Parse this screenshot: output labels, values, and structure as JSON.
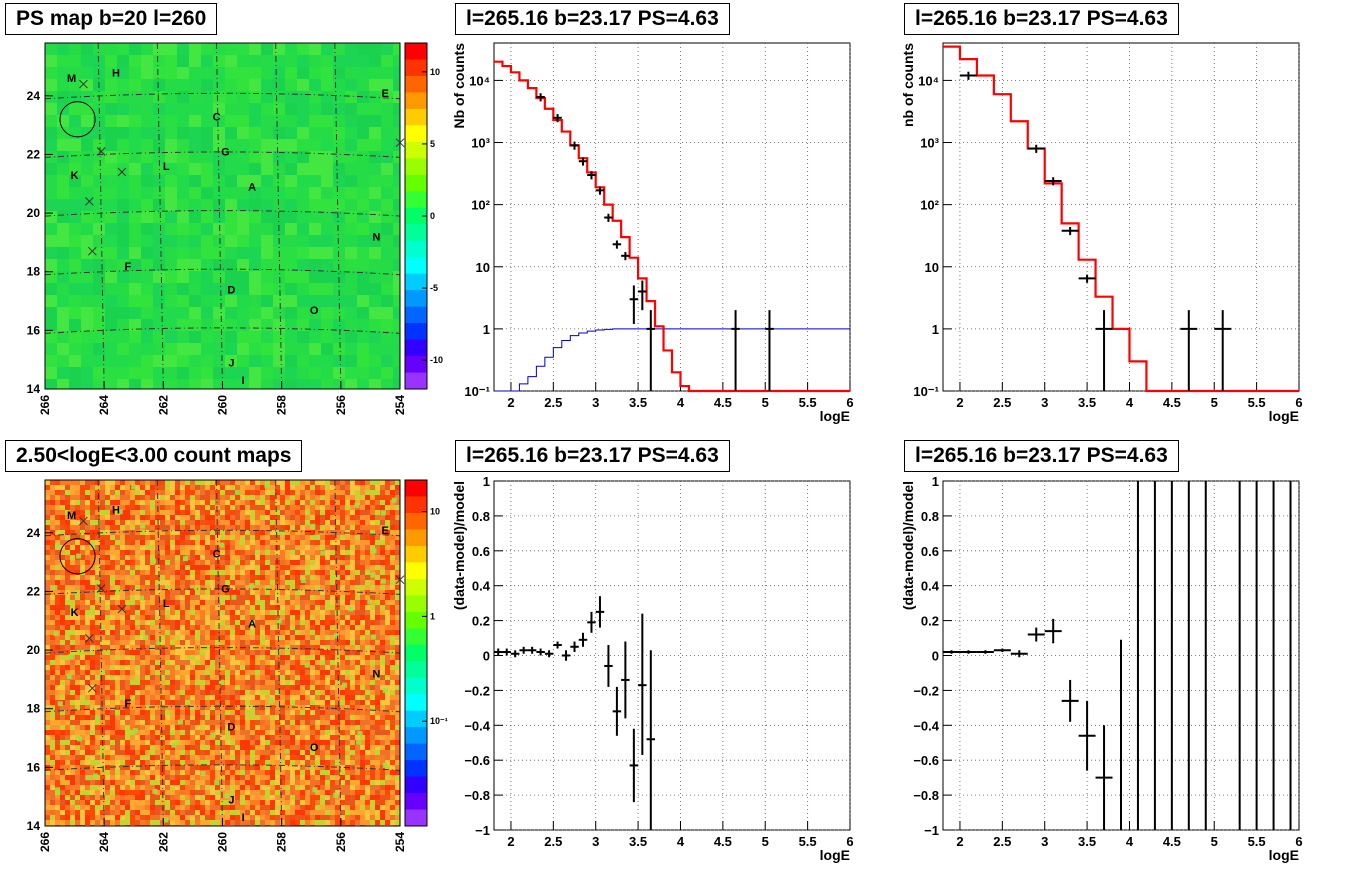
{
  "map_labels": [
    {
      "id": "M",
      "l": 265.1,
      "b": 24.6
    },
    {
      "id": "H",
      "l": 263.6,
      "b": 24.8
    },
    {
      "id": "E",
      "l": 254.5,
      "b": 24.1
    },
    {
      "id": "C",
      "l": 260.2,
      "b": 23.3
    },
    {
      "id": "G",
      "l": 259.9,
      "b": 22.1
    },
    {
      "id": "K",
      "l": 265.0,
      "b": 21.3
    },
    {
      "id": "L",
      "l": 261.9,
      "b": 21.6
    },
    {
      "id": "A",
      "l": 259.0,
      "b": 20.9
    },
    {
      "id": "N",
      "l": 254.8,
      "b": 19.2
    },
    {
      "id": "F",
      "l": 263.2,
      "b": 18.2
    },
    {
      "id": "D",
      "l": 259.7,
      "b": 17.4
    },
    {
      "id": "O",
      "l": 256.9,
      "b": 16.7
    },
    {
      "id": "J",
      "l": 259.7,
      "b": 14.9
    },
    {
      "id": "I",
      "l": 259.3,
      "b": 14.3
    }
  ],
  "map_markers": [
    {
      "l": 264.7,
      "b": 24.4
    },
    {
      "l": 264.1,
      "b": 22.1
    },
    {
      "l": 263.4,
      "b": 21.4
    },
    {
      "l": 264.5,
      "b": 20.4
    },
    {
      "l": 264.4,
      "b": 18.7
    },
    {
      "l": 254.0,
      "b": 22.4
    }
  ],
  "map_circle": {
    "l": 264.9,
    "b": 23.2,
    "r": 0.6
  },
  "panels": [
    {
      "key": "ps_map",
      "kind": "map",
      "title": "PS map b=20 l=260",
      "x_ticks": [
        "266",
        "264",
        "262",
        "260",
        "258",
        "256",
        "254"
      ],
      "y_ticks": [
        "14",
        "16",
        "18",
        "20",
        "22",
        "24"
      ],
      "colorbar_ticks": [
        {
          "v": 10,
          "t": "10"
        },
        {
          "v": 5,
          "t": "5"
        },
        {
          "v": 0,
          "t": "0"
        },
        {
          "v": -5,
          "t": "-5"
        },
        {
          "v": -10,
          "t": "-10"
        }
      ],
      "colorbar_colors": [
        "#ff0000",
        "#ff3300",
        "#ff6600",
        "#ff9900",
        "#ffcc00",
        "#ffff00",
        "#ccff00",
        "#99ff00",
        "#66ff00",
        "#33ff33",
        "#00ff66",
        "#00ff99",
        "#00ffcc",
        "#00ffff",
        "#00ccff",
        "#0099ff",
        "#0066ff",
        "#0033ff",
        "#3300ff",
        "#6600ff",
        "#9933ff"
      ],
      "map_fill": "#22dd44"
    },
    {
      "key": "counts_fine",
      "kind": "log",
      "title": "l=265.16 b=23.17 PS=4.63",
      "xlabel": "logE",
      "ylabel": "Nb of counts"
    },
    {
      "key": "counts_coarse",
      "kind": "log",
      "title": "l=265.16 b=23.17 PS=4.63",
      "xlabel": "logE",
      "ylabel": "nb of counts"
    },
    {
      "key": "count_map",
      "kind": "map",
      "title": "2.50<logE<3.00 count maps",
      "x_ticks": [
        "266",
        "264",
        "262",
        "260",
        "258",
        "256",
        "254"
      ],
      "y_ticks": [
        "14",
        "16",
        "18",
        "20",
        "22",
        "24"
      ],
      "colorbar_ticks": [
        {
          "v": 10,
          "t": "10"
        },
        {
          "v": 1,
          "t": "1"
        },
        {
          "v": 0.1,
          "t": "10⁻¹"
        }
      ],
      "colorbar_colors": [
        "#ff0000",
        "#ff3300",
        "#ff6600",
        "#ff9900",
        "#ffcc00",
        "#ffff00",
        "#ccff00",
        "#99ff00",
        "#66ff00",
        "#33ff33",
        "#00ff66",
        "#00ff99",
        "#00ffcc",
        "#00ffff",
        "#00ccff",
        "#0099ff",
        "#0066ff",
        "#0033ff",
        "#3300ff",
        "#6600ff",
        "#9933ff"
      ],
      "map_fill": "#f08030"
    },
    {
      "key": "resid_fine",
      "kind": "lin",
      "title": "l=265.16 b=23.17 PS=4.63",
      "xlabel": "logE",
      "ylabel": "(data-model)/model"
    },
    {
      "key": "resid_coarse",
      "kind": "lin",
      "title": "l=265.16 b=23.17 PS=4.63",
      "xlabel": "logE",
      "ylabel": "(data-model)/model"
    }
  ],
  "chart_data": [
    {
      "type": "heatmap",
      "title": "PS map b=20 l=260",
      "xlim": [
        266,
        254
      ],
      "ylim": [
        14,
        25.8
      ],
      "zlim": [
        -12,
        12
      ],
      "colors": {
        "fill": "#22dd44"
      }
    },
    {
      "type": "line",
      "title": "l=265.16 b=23.17 PS=4.63",
      "xlabel": "logE",
      "ylabel": "Nb of counts",
      "xlim": [
        1.8,
        6
      ],
      "ylim": [
        0.1,
        40000
      ],
      "yscale": "log",
      "grid": true,
      "x_ticks": [
        2,
        2.5,
        3,
        3.5,
        4,
        4.5,
        5,
        5.5,
        6
      ],
      "y_ticks": [
        {
          "v": 0.1,
          "t": "10⁻¹"
        },
        {
          "v": 1,
          "t": "1"
        },
        {
          "v": 10,
          "t": "10"
        },
        {
          "v": 100,
          "t": "10²"
        },
        {
          "v": 1000,
          "t": "10³"
        },
        {
          "v": 10000,
          "t": "10⁴"
        }
      ],
      "model_red": {
        "edges": [
          1.8,
          1.9,
          2.0,
          2.1,
          2.2,
          2.3,
          2.4,
          2.5,
          2.6,
          2.7,
          2.8,
          2.9,
          3.0,
          3.1,
          3.2,
          3.3,
          3.4,
          3.5,
          3.6,
          3.7,
          3.8,
          3.9,
          4.0,
          4.1,
          4.2,
          6.0
        ],
        "values": [
          20000,
          17000,
          13500,
          10000,
          7500,
          5200,
          3500,
          2300,
          1500,
          900,
          560,
          330,
          190,
          100,
          55,
          30,
          14,
          6.5,
          2.8,
          1.1,
          0.45,
          0.2,
          0.12,
          0.1,
          0.08
        ]
      },
      "model_blue": {
        "edges": [
          1.8,
          1.9,
          2.0,
          2.1,
          2.2,
          2.3,
          2.4,
          2.5,
          2.6,
          2.7,
          2.8,
          2.9,
          3.0,
          3.1,
          3.2,
          3.3,
          3.4,
          3.5,
          3.6,
          6.0
        ],
        "values": [
          0.05,
          0.08,
          0.1,
          0.13,
          0.17,
          0.25,
          0.35,
          0.5,
          0.65,
          0.78,
          0.86,
          0.92,
          0.96,
          0.98,
          1.0,
          1.0,
          1.0,
          1.0,
          1.0
        ]
      },
      "data_points": [
        {
          "x": 2.35,
          "y": 5400,
          "dx": 0.05
        },
        {
          "x": 2.55,
          "y": 2500,
          "dx": 0.05
        },
        {
          "x": 2.75,
          "y": 900,
          "dx": 0.05
        },
        {
          "x": 2.85,
          "y": 500,
          "dx": 0.05
        },
        {
          "x": 2.95,
          "y": 300,
          "dx": 0.05
        },
        {
          "x": 3.05,
          "y": 170,
          "dx": 0.05
        },
        {
          "x": 3.15,
          "y": 62,
          "dx": 0.05
        },
        {
          "x": 3.25,
          "y": 23,
          "dx": 0.05
        },
        {
          "x": 3.35,
          "y": 15,
          "dx": 0.05
        },
        {
          "x": 3.45,
          "y": 3,
          "dx": 0.05,
          "ylo": 1.2,
          "yhi": 5
        },
        {
          "x": 3.55,
          "y": 4,
          "dx": 0.05,
          "ylo": 2,
          "yhi": 6
        },
        {
          "x": 3.65,
          "y": 1,
          "dx": 0.05,
          "ylo": 0.1,
          "yhi": 2
        },
        {
          "x": 4.65,
          "y": 1,
          "dx": 0.05,
          "ylo": 0.1,
          "yhi": 2
        },
        {
          "x": 5.05,
          "y": 1,
          "dx": 0.05,
          "ylo": 0.1,
          "yhi": 2
        }
      ],
      "colors": {
        "model": "#ff0000",
        "background": "#0000cc",
        "data": "#000000"
      }
    },
    {
      "type": "line",
      "title": "l=265.16 b=23.17 PS=4.63",
      "xlabel": "logE",
      "ylabel": "nb of counts",
      "xlim": [
        1.8,
        6
      ],
      "ylim": [
        0.1,
        40000
      ],
      "yscale": "log",
      "grid": true,
      "x_ticks": [
        2,
        2.5,
        3,
        3.5,
        4,
        4.5,
        5,
        5.5,
        6
      ],
      "y_ticks": [
        {
          "v": 0.1,
          "t": "10⁻¹"
        },
        {
          "v": 1,
          "t": "1"
        },
        {
          "v": 10,
          "t": "10"
        },
        {
          "v": 100,
          "t": "10²"
        },
        {
          "v": 1000,
          "t": "10³"
        },
        {
          "v": 10000,
          "t": "10⁴"
        }
      ],
      "model_red": {
        "edges": [
          1.8,
          2.0,
          2.2,
          2.4,
          2.6,
          2.8,
          3.0,
          3.2,
          3.4,
          3.6,
          3.8,
          4.0,
          4.2,
          6.0
        ],
        "values": [
          35000,
          22000,
          12000,
          6000,
          2200,
          800,
          220,
          50,
          13,
          3.3,
          1,
          0.3,
          0.1
        ]
      },
      "model_blue": {
        "edges": [],
        "values": []
      },
      "data_points": [
        {
          "x": 2.1,
          "y": 12000,
          "dx": 0.1
        },
        {
          "x": 2.9,
          "y": 800,
          "dx": 0.1
        },
        {
          "x": 3.1,
          "y": 240,
          "dx": 0.1
        },
        {
          "x": 3.3,
          "y": 38,
          "dx": 0.1
        },
        {
          "x": 3.5,
          "y": 6.5,
          "dx": 0.1
        },
        {
          "x": 3.7,
          "y": 1,
          "dx": 0.1,
          "ylo": 0.1,
          "yhi": 2
        },
        {
          "x": 4.7,
          "y": 1,
          "dx": 0.1,
          "ylo": 0.1,
          "yhi": 2
        },
        {
          "x": 5.1,
          "y": 1,
          "dx": 0.1,
          "ylo": 0.1,
          "yhi": 2
        }
      ],
      "colors": {
        "model": "#ff0000",
        "data": "#000000"
      }
    },
    {
      "type": "heatmap",
      "title": "2.50<logE<3.00 count maps",
      "xlim": [
        266,
        254
      ],
      "ylim": [
        14,
        25.8
      ],
      "zlim": [
        0.01,
        20
      ],
      "zscale": "log",
      "colors": {
        "fill": "#f08030"
      }
    },
    {
      "type": "scatter",
      "title": "l=265.16 b=23.17 PS=4.63",
      "xlabel": "logE",
      "ylabel": "(data-model)/model",
      "xlim": [
        1.8,
        6
      ],
      "ylim": [
        -1,
        1
      ],
      "grid": true,
      "x_ticks": [
        2,
        2.5,
        3,
        3.5,
        4,
        4.5,
        5,
        5.5,
        6
      ],
      "y_ticks": [
        {
          "v": -1,
          "t": "−1"
        },
        {
          "v": -0.8,
          "t": "−0.8"
        },
        {
          "v": -0.6,
          "t": "−0.6"
        },
        {
          "v": -0.4,
          "t": "−0.4"
        },
        {
          "v": -0.2,
          "t": "−0.2"
        },
        {
          "v": 0,
          "t": "0"
        },
        {
          "v": 0.2,
          "t": "0.2"
        },
        {
          "v": 0.4,
          "t": "0.4"
        },
        {
          "v": 0.6,
          "t": "0.6"
        },
        {
          "v": 0.8,
          "t": "0.8"
        },
        {
          "v": 1,
          "t": "1"
        }
      ],
      "data_points": [
        {
          "x": 1.85,
          "y": 0.02,
          "dx": 0.05,
          "ylo": 0.0,
          "yhi": 0.04
        },
        {
          "x": 1.95,
          "y": 0.02,
          "dx": 0.05,
          "ylo": 0.0,
          "yhi": 0.04
        },
        {
          "x": 2.05,
          "y": 0.01,
          "dx": 0.05,
          "ylo": -0.01,
          "yhi": 0.03
        },
        {
          "x": 2.15,
          "y": 0.03,
          "dx": 0.05,
          "ylo": 0.01,
          "yhi": 0.05
        },
        {
          "x": 2.25,
          "y": 0.03,
          "dx": 0.05,
          "ylo": 0.01,
          "yhi": 0.05
        },
        {
          "x": 2.35,
          "y": 0.02,
          "dx": 0.05,
          "ylo": 0.0,
          "yhi": 0.04
        },
        {
          "x": 2.45,
          "y": 0.01,
          "dx": 0.05,
          "ylo": -0.01,
          "yhi": 0.03
        },
        {
          "x": 2.55,
          "y": 0.06,
          "dx": 0.05,
          "ylo": 0.04,
          "yhi": 0.08
        },
        {
          "x": 2.65,
          "y": 0.0,
          "dx": 0.05,
          "ylo": -0.03,
          "yhi": 0.03
        },
        {
          "x": 2.75,
          "y": 0.05,
          "dx": 0.05,
          "ylo": 0.02,
          "yhi": 0.08
        },
        {
          "x": 2.85,
          "y": 0.09,
          "dx": 0.05,
          "ylo": 0.05,
          "yhi": 0.13
        },
        {
          "x": 2.95,
          "y": 0.19,
          "dx": 0.05,
          "ylo": 0.13,
          "yhi": 0.25
        },
        {
          "x": 3.05,
          "y": 0.25,
          "dx": 0.05,
          "ylo": 0.16,
          "yhi": 0.34
        },
        {
          "x": 3.15,
          "y": -0.06,
          "dx": 0.05,
          "ylo": -0.18,
          "yhi": 0.06
        },
        {
          "x": 3.25,
          "y": -0.32,
          "dx": 0.05,
          "ylo": -0.46,
          "yhi": -0.18
        },
        {
          "x": 3.35,
          "y": -0.14,
          "dx": 0.05,
          "ylo": -0.36,
          "yhi": 0.08
        },
        {
          "x": 3.45,
          "y": -0.63,
          "dx": 0.05,
          "ylo": -0.84,
          "yhi": -0.42
        },
        {
          "x": 3.55,
          "y": -0.17,
          "dx": 0.05,
          "ylo": -0.57,
          "yhi": 0.24
        },
        {
          "x": 3.65,
          "y": -0.48,
          "dx": 0.05,
          "ylo": -1.0,
          "yhi": 0.03
        }
      ],
      "colors": {
        "data": "#000000"
      }
    },
    {
      "type": "scatter",
      "title": "l=265.16 b=23.17 PS=4.63",
      "xlabel": "logE",
      "ylabel": "(data-model)/model",
      "xlim": [
        1.8,
        6
      ],
      "ylim": [
        -1,
        1
      ],
      "grid": true,
      "x_ticks": [
        2,
        2.5,
        3,
        3.5,
        4,
        4.5,
        5,
        5.5,
        6
      ],
      "y_ticks": [
        {
          "v": -1,
          "t": "−1"
        },
        {
          "v": -0.8,
          "t": "−0.8"
        },
        {
          "v": -0.6,
          "t": "−0.6"
        },
        {
          "v": -0.4,
          "t": "−0.4"
        },
        {
          "v": -0.2,
          "t": "−0.2"
        },
        {
          "v": 0,
          "t": "0"
        },
        {
          "v": 0.2,
          "t": "0.2"
        },
        {
          "v": 0.4,
          "t": "0.4"
        },
        {
          "v": 0.6,
          "t": "0.6"
        },
        {
          "v": 0.8,
          "t": "0.8"
        },
        {
          "v": 1,
          "t": "1"
        }
      ],
      "data_points": [
        {
          "x": 1.9,
          "y": 0.02,
          "dx": 0.1,
          "ylo": 0.01,
          "yhi": 0.03
        },
        {
          "x": 2.1,
          "y": 0.02,
          "dx": 0.1,
          "ylo": 0.01,
          "yhi": 0.03
        },
        {
          "x": 2.3,
          "y": 0.02,
          "dx": 0.1,
          "ylo": 0.01,
          "yhi": 0.03
        },
        {
          "x": 2.5,
          "y": 0.03,
          "dx": 0.1,
          "ylo": 0.02,
          "yhi": 0.04
        },
        {
          "x": 2.7,
          "y": 0.01,
          "dx": 0.1,
          "ylo": -0.01,
          "yhi": 0.03
        },
        {
          "x": 2.9,
          "y": 0.12,
          "dx": 0.1,
          "ylo": 0.08,
          "yhi": 0.16
        },
        {
          "x": 3.1,
          "y": 0.14,
          "dx": 0.1,
          "ylo": 0.07,
          "yhi": 0.21
        },
        {
          "x": 3.3,
          "y": -0.26,
          "dx": 0.1,
          "ylo": -0.38,
          "yhi": -0.14
        },
        {
          "x": 3.5,
          "y": -0.46,
          "dx": 0.1,
          "ylo": -0.66,
          "yhi": -0.26
        },
        {
          "x": 3.7,
          "y": -0.7,
          "dx": 0.1,
          "ylo": -1.0,
          "yhi": -0.4
        },
        {
          "x": 3.9,
          "y": -1.0,
          "dx": 0.1,
          "ylo": -1.0,
          "yhi": 0.09
        },
        {
          "x": 4.1,
          "y": -1.0,
          "dx": 0.1,
          "ylo": -1.0,
          "yhi": 1.0
        },
        {
          "x": 4.3,
          "y": -1.0,
          "dx": 0.1,
          "ylo": -1.0,
          "yhi": 1.0
        },
        {
          "x": 4.5,
          "y": -1.0,
          "dx": 0.1,
          "ylo": -1.0,
          "yhi": 1.0
        },
        {
          "x": 4.7,
          "y": -1.0,
          "dx": 0.1,
          "ylo": -1.0,
          "yhi": 1.0
        },
        {
          "x": 4.9,
          "y": -1.0,
          "dx": 0.1,
          "ylo": -1.0,
          "yhi": 1.0
        },
        {
          "x": 5.3,
          "y": -1.0,
          "dx": 0.1,
          "ylo": -1.0,
          "yhi": 1.0
        },
        {
          "x": 5.5,
          "y": -1.0,
          "dx": 0.1,
          "ylo": -1.0,
          "yhi": 1.0
        },
        {
          "x": 5.7,
          "y": -1.0,
          "dx": 0.1,
          "ylo": -1.0,
          "yhi": 1.0
        },
        {
          "x": 5.9,
          "y": -1.0,
          "dx": 0.1,
          "ylo": -1.0,
          "yhi": 1.0
        }
      ],
      "colors": {
        "data": "#000000"
      }
    }
  ]
}
